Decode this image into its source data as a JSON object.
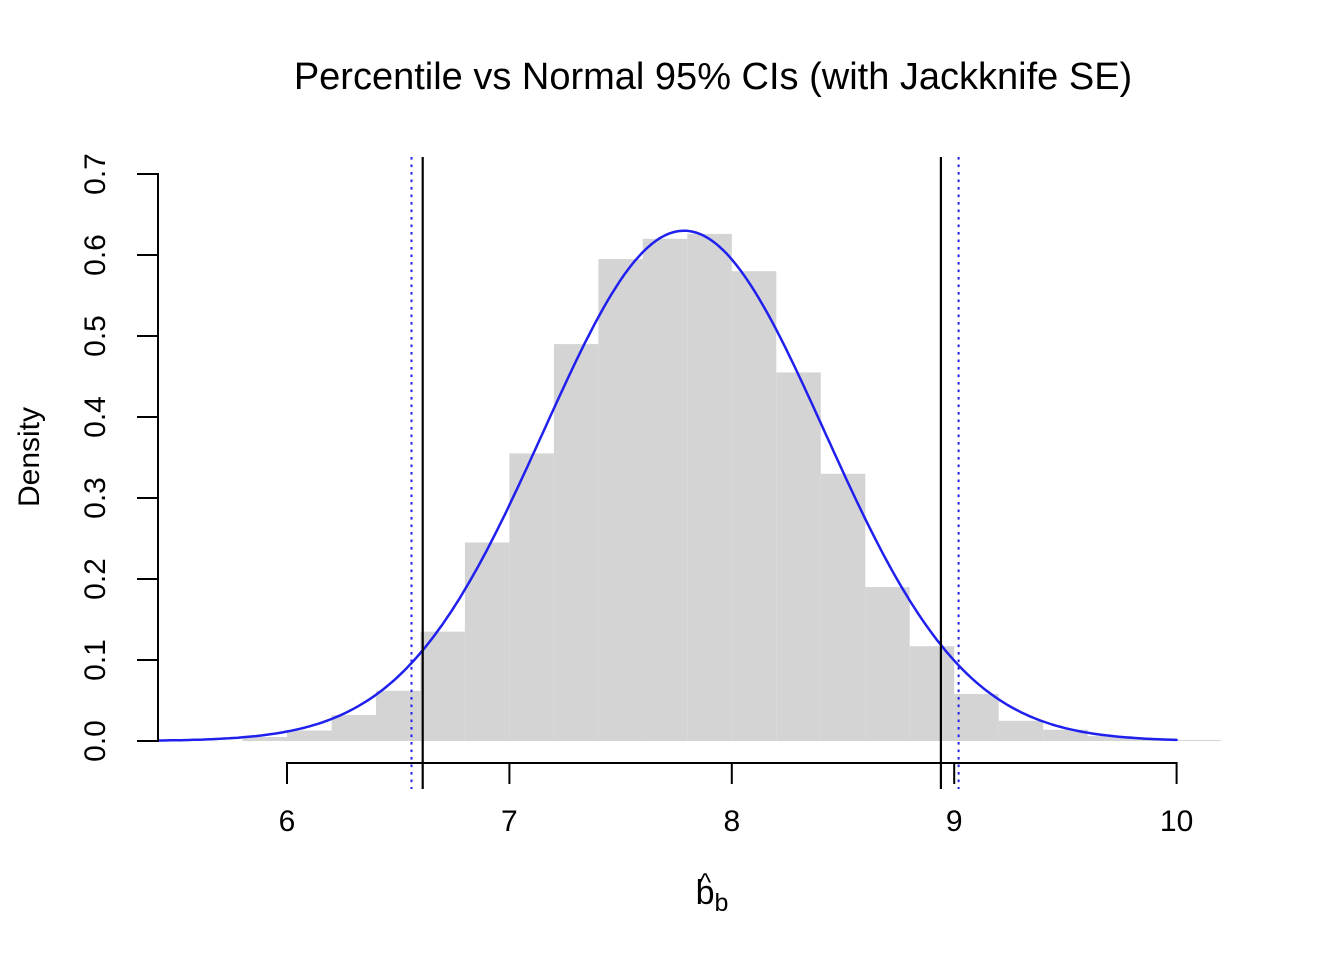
{
  "page": {
    "background": "#ffffff"
  },
  "title": "Percentile vs Normal 95% CIs (with Jackknife SE)",
  "ylabel": "Density",
  "xlabel": {
    "base": "b",
    "hat": "^",
    "subscript": "b"
  },
  "chart_data": {
    "type": "bar",
    "subtype": "histogram_with_normal_density_overlay",
    "title": "Percentile vs Normal 95% CIs (with Jackknife SE)",
    "xlabel": "b̂_b",
    "ylabel": "Density",
    "grid": false,
    "legend": "none",
    "x_ticks": [
      "6",
      "7",
      "8",
      "9",
      "10"
    ],
    "y_ticks": [
      "0.0",
      "0.1",
      "0.2",
      "0.3",
      "0.4",
      "0.5",
      "0.6",
      "0.7"
    ],
    "xlim": [
      5.42,
      10.38
    ],
    "ylim": [
      -0.028,
      0.728
    ],
    "bin_edges": [
      5.8,
      6.0,
      6.2,
      6.4,
      6.6,
      6.8,
      7.0,
      7.2,
      7.4,
      7.6,
      7.8,
      8.0,
      8.2,
      8.4,
      8.6,
      8.8,
      9.0,
      9.2,
      9.4,
      9.6,
      9.8,
      10.0,
      10.2
    ],
    "bin_densities": [
      0.005,
      0.013,
      0.032,
      0.062,
      0.135,
      0.245,
      0.355,
      0.49,
      0.595,
      0.62,
      0.626,
      0.58,
      0.455,
      0.33,
      0.19,
      0.117,
      0.058,
      0.025,
      0.014,
      0.006,
      0.0025,
      0.0012
    ],
    "normal_curve": {
      "mean": 7.785,
      "sd": 0.632,
      "peak_density": 0.63,
      "x_start": 5.42,
      "x_end": 10.0,
      "color": "#2020ee",
      "line_width": 2.5
    },
    "ci_lines": [
      {
        "name": "percentile-ci-lower",
        "x": 6.61,
        "style": "solid",
        "color": "#000000"
      },
      {
        "name": "percentile-ci-upper",
        "x": 8.94,
        "style": "solid",
        "color": "#000000"
      },
      {
        "name": "normal-ci-lower",
        "x": 6.56,
        "style": "dotted",
        "color": "#2020ee"
      },
      {
        "name": "normal-ci-upper",
        "x": 9.02,
        "style": "dotted",
        "color": "#2020ee"
      }
    ],
    "style": {
      "bar_fill": "#d4d4d4",
      "axis_color": "#000000",
      "text_color": "#000000"
    }
  }
}
